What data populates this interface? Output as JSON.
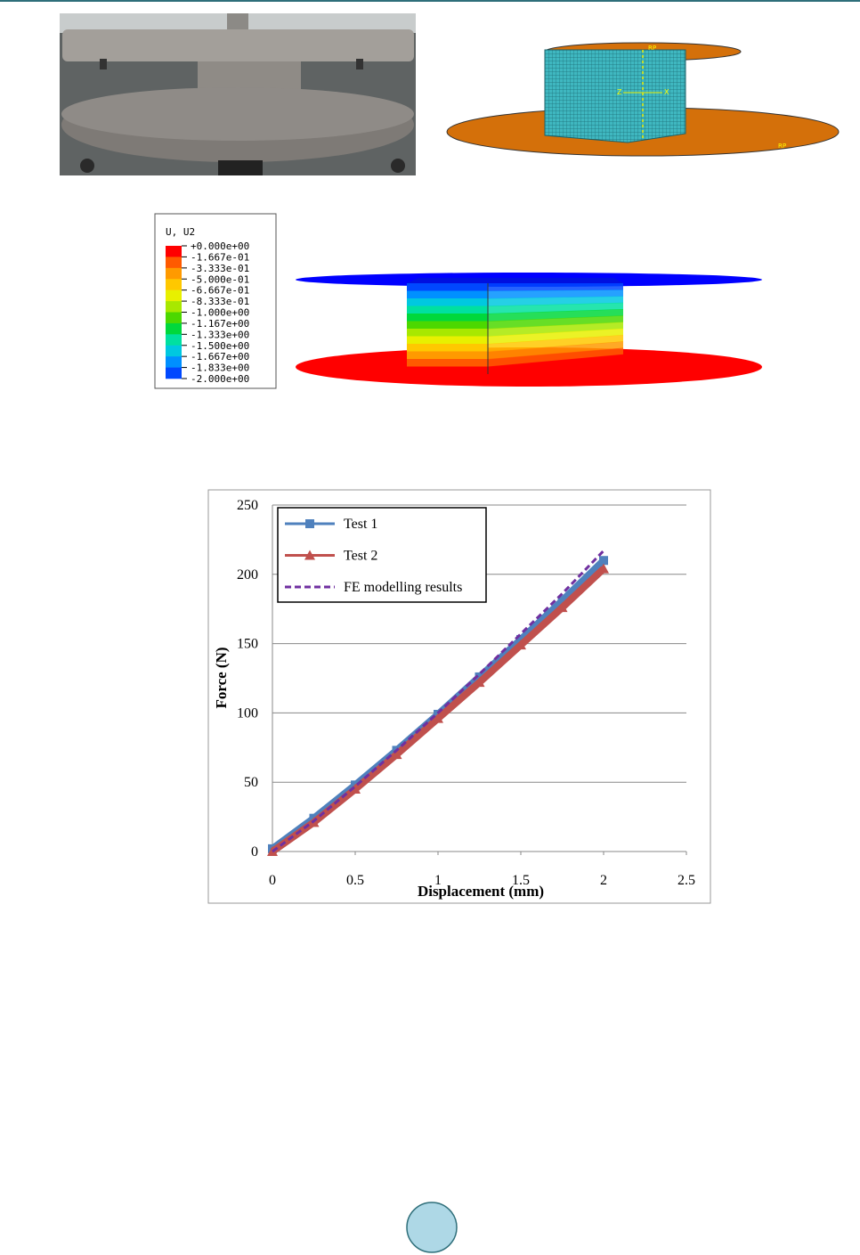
{
  "top_model": {
    "labels": [
      "RP",
      "Z",
      "X",
      "RP"
    ]
  },
  "contour_legend": {
    "title": "U, U2",
    "levels": [
      "+0.000e+00",
      "-1.667e-01",
      "-3.333e-01",
      "-5.000e-01",
      "-6.667e-01",
      "-8.333e-01",
      "-1.000e+00",
      "-1.167e+00",
      "-1.333e+00",
      "-1.500e+00",
      "-1.667e+00",
      "-1.833e+00",
      "-2.000e+00"
    ],
    "colors": [
      "#ff0000",
      "#ff5a00",
      "#ff9a00",
      "#ffc800",
      "#e8f000",
      "#a8e800",
      "#4cd800",
      "#00d83c",
      "#00e0a0",
      "#00c8e0",
      "#0090ff",
      "#0048ff",
      "#0000e0"
    ]
  },
  "chart_data": {
    "type": "line",
    "x_label": "Displacement (mm)",
    "y_label": "Force (N)",
    "x": [
      0,
      0.25,
      0.5,
      0.75,
      1,
      1.25,
      1.5,
      1.75,
      2
    ],
    "series": [
      {
        "name": "Test 1",
        "color": "#4f81bd",
        "marker": "square",
        "dash": false,
        "values": [
          2,
          24,
          48,
          73,
          99,
          126,
          153,
          181,
          210
        ]
      },
      {
        "name": "Test 2",
        "color": "#c0504d",
        "marker": "triangle",
        "dash": false,
        "values": [
          0,
          21,
          45,
          70,
          96,
          122,
          149,
          176,
          204
        ]
      },
      {
        "name": "FE modelling results",
        "color": "#7030a0",
        "marker": null,
        "dash": true,
        "values": [
          0,
          22,
          47,
          73,
          100,
          128,
          157,
          186,
          217
        ]
      }
    ],
    "xlim": [
      0,
      2.5
    ],
    "ylim": [
      0,
      250
    ],
    "xticks": [
      0,
      0.5,
      1,
      1.5,
      2,
      2.5
    ],
    "yticks": [
      0,
      50,
      100,
      150,
      200,
      250
    ],
    "grid": true,
    "legend": "top-left"
  }
}
